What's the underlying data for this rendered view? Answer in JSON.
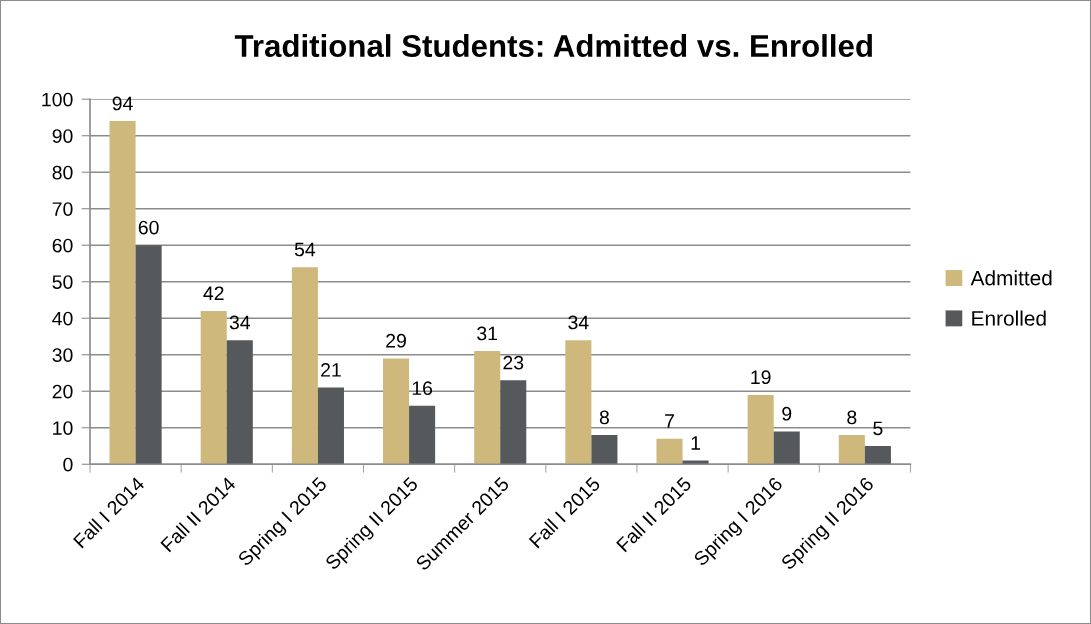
{
  "chart_data": {
    "type": "bar",
    "title": "Traditional Students: Admitted vs. Enrolled",
    "categories": [
      "Fall I 2014",
      "Fall II 2014",
      "Spring I 2015",
      "Spring II 2015",
      "Summer 2015",
      "Fall I 2015",
      "Fall II 2015",
      "Spring I 2016",
      "Spring II 2016"
    ],
    "series": [
      {
        "name": "Admitted",
        "color": "#cfb87c",
        "values": [
          94,
          42,
          54,
          29,
          31,
          34,
          7,
          19,
          8
        ]
      },
      {
        "name": "Enrolled",
        "color": "#56595c",
        "values": [
          60,
          34,
          21,
          16,
          23,
          8,
          1,
          9,
          5
        ]
      }
    ],
    "ylim": [
      0,
      100
    ],
    "yticks": [
      0,
      10,
      20,
      30,
      40,
      50,
      60,
      70,
      80,
      90,
      100
    ],
    "grid": "y",
    "legend": "right",
    "data_labels": true
  }
}
